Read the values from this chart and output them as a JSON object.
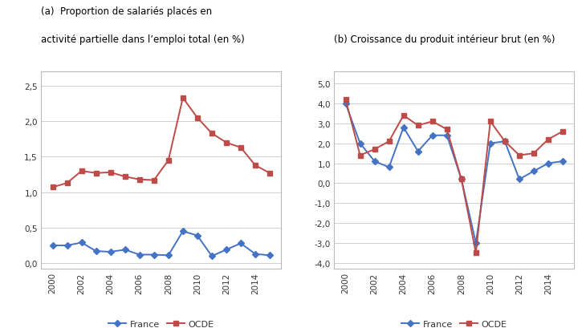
{
  "years": [
    2000,
    2001,
    2002,
    2003,
    2004,
    2005,
    2006,
    2007,
    2008,
    2009,
    2010,
    2011,
    2012,
    2013,
    2014,
    2015
  ],
  "panel_a": {
    "title_line1": "(a)  Proportion de salariés placés en",
    "title_line2": "activité partielle dans l’emploi total (en %)",
    "france": [
      0.25,
      0.25,
      0.29,
      0.17,
      0.16,
      0.19,
      0.12,
      0.12,
      0.11,
      0.45,
      0.39,
      0.1,
      0.19,
      0.28,
      0.13,
      0.11
    ],
    "ocde": [
      1.07,
      1.13,
      1.3,
      1.27,
      1.28,
      1.22,
      1.18,
      1.17,
      1.45,
      2.33,
      2.05,
      1.83,
      1.7,
      1.63,
      1.38,
      1.27
    ],
    "ylim": [
      -0.08,
      2.7
    ],
    "yticks": [
      0.0,
      0.5,
      1.0,
      1.5,
      2.0,
      2.5
    ],
    "ytick_labels": [
      "0,0",
      "0,5",
      "1,0",
      "1,5",
      "2,0",
      "2,5"
    ]
  },
  "panel_b": {
    "title": "(b) Croissance du produit intérieur brut (en %)",
    "france": [
      4.0,
      2.0,
      1.1,
      0.8,
      2.8,
      1.6,
      2.4,
      2.4,
      0.2,
      -3.0,
      2.0,
      2.1,
      0.2,
      0.6,
      1.0,
      1.1
    ],
    "ocde": [
      4.2,
      1.4,
      1.7,
      2.1,
      3.4,
      2.9,
      3.1,
      2.7,
      0.2,
      -3.5,
      3.1,
      2.1,
      1.4,
      1.5,
      2.2,
      2.6
    ],
    "ylim": [
      -4.3,
      5.6
    ],
    "yticks": [
      -4.0,
      -3.0,
      -2.0,
      -1.0,
      0.0,
      1.0,
      2.0,
      3.0,
      4.0,
      5.0
    ],
    "ytick_labels": [
      "-4,0",
      "-3,0",
      "-2,0",
      "-1,0",
      "0,0",
      "1,0",
      "2,0",
      "3,0",
      "4,0",
      "5,0"
    ]
  },
  "france_color": "#4472C4",
  "ocde_color": "#BE4B48",
  "france_marker": "D",
  "ocde_marker": "s",
  "marker_size": 4,
  "line_width": 1.4,
  "grid_color": "#C8C8C8",
  "bg_color": "#FFFFFF",
  "legend_france": "France",
  "legend_ocde": "OCDE",
  "xtick_years": [
    2000,
    2002,
    2004,
    2006,
    2008,
    2010,
    2012,
    2014
  ],
  "title_fontsize": 8.5,
  "tick_fontsize": 7.5,
  "legend_fontsize": 8.0,
  "box_color": "#BBBBBB"
}
